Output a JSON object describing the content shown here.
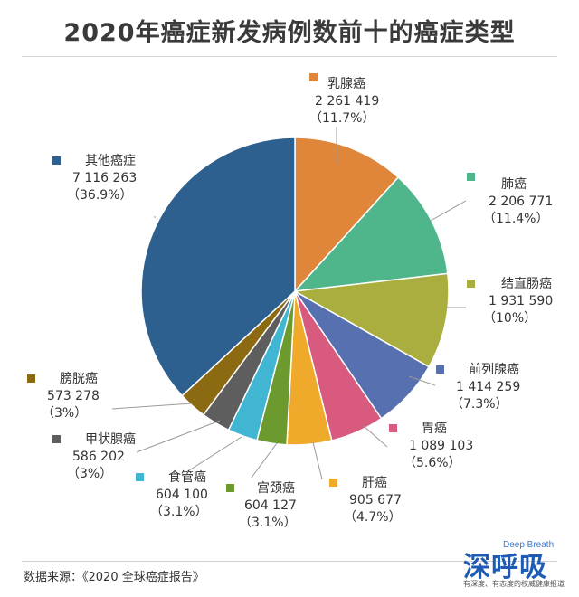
{
  "chart_data": {
    "type": "pie",
    "title": "2020年癌症新发病例数前十的癌症类型",
    "series": [
      {
        "name": "乳腺癌",
        "value": 2261419,
        "value_text": "2 261 419",
        "percent_text": "（11.7%）",
        "color": "#e0863a"
      },
      {
        "name": "肺癌",
        "value": 2206771,
        "value_text": "2 206 771",
        "percent_text": "（11.4%）",
        "color": "#4fb68c"
      },
      {
        "name": "结直肠癌",
        "value": 1931590,
        "value_text": "1 931 590",
        "percent_text": "（10%）",
        "color": "#a9ae3e"
      },
      {
        "name": "前列腺癌",
        "value": 1414259,
        "value_text": "1 414 259",
        "percent_text": "（7.3%）",
        "color": "#5670b0"
      },
      {
        "name": "胃癌",
        "value": 1089103,
        "value_text": "1 089 103",
        "percent_text": "（5.6%）",
        "color": "#d85a7e"
      },
      {
        "name": "肝癌",
        "value": 905677,
        "value_text": "905 677",
        "percent_text": "（4.7%）",
        "color": "#efaa2c"
      },
      {
        "name": "宫颈癌",
        "value": 604127,
        "value_text": "604 127",
        "percent_text": "（3.1%）",
        "color": "#6d9a2f"
      },
      {
        "name": "食管癌",
        "value": 604100,
        "value_text": "604 100",
        "percent_text": "（3.1%）",
        "color": "#40b6d2"
      },
      {
        "name": "甲状腺癌",
        "value": 586202,
        "value_text": "586 202",
        "percent_text": "（3%）",
        "color": "#5e5e5e"
      },
      {
        "name": "膀胱癌",
        "value": 573278,
        "value_text": "573 278",
        "percent_text": "（3%）",
        "color": "#8b6a12"
      },
      {
        "name": "其他癌症",
        "value": 7116263,
        "value_text": "7 116 263",
        "percent_text": "（36.9%）",
        "color": "#2d5f8f"
      }
    ]
  },
  "footer": {
    "source": "数据来源：《2020 全球癌症报告》"
  },
  "brand": {
    "name": "深呼吸",
    "english": "Deep Breath",
    "tagline": "有深度、有态度的权威健康报道"
  }
}
